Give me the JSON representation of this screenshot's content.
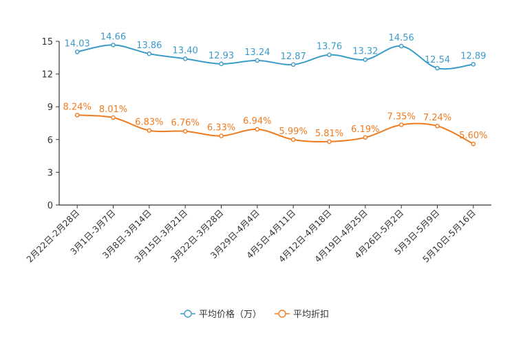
{
  "chart_data": {
    "type": "line",
    "title": "",
    "xlabel": "",
    "ylabel": "",
    "ylim": [
      0,
      15
    ],
    "yticks": [
      "0",
      "3",
      "6",
      "9",
      "12",
      "15"
    ],
    "categories": [
      "2月22日-2月28日",
      "3月1日-3月7日",
      "3月8日-3月14日",
      "3月15日-3月21日",
      "3月22日-3月28日",
      "3月29日-4月4日",
      "4月5日-4月11日",
      "4月12日-4月18日",
      "4月19日-4月25日",
      "4月26日-5月2日",
      "5月3日-5月9日",
      "5月10日-5月16日"
    ],
    "series": [
      {
        "name": "平均价格（万）",
        "color": "#3a9bc9",
        "values": [
          14.03,
          14.66,
          13.86,
          13.4,
          12.93,
          13.24,
          12.87,
          13.76,
          13.32,
          14.56,
          12.54,
          12.89
        ],
        "labels": [
          "14.03",
          "14.66",
          "13.86",
          "13.40",
          "12.93",
          "13.24",
          "12.87",
          "13.76",
          "13.32",
          "14.56",
          "12.54",
          "12.89"
        ]
      },
      {
        "name": "平均折扣",
        "color": "#f07a1e",
        "values": [
          8.24,
          8.01,
          6.83,
          6.76,
          6.33,
          6.94,
          5.99,
          5.81,
          6.19,
          7.35,
          7.24,
          5.6
        ],
        "labels": [
          "8.24%",
          "8.01%",
          "6.83%",
          "6.76%",
          "6.33%",
          "6.94%",
          "5.99%",
          "5.81%",
          "6.19%",
          "7.35%",
          "7.24%",
          "5.60%"
        ]
      }
    ],
    "legend_position": "bottom"
  }
}
